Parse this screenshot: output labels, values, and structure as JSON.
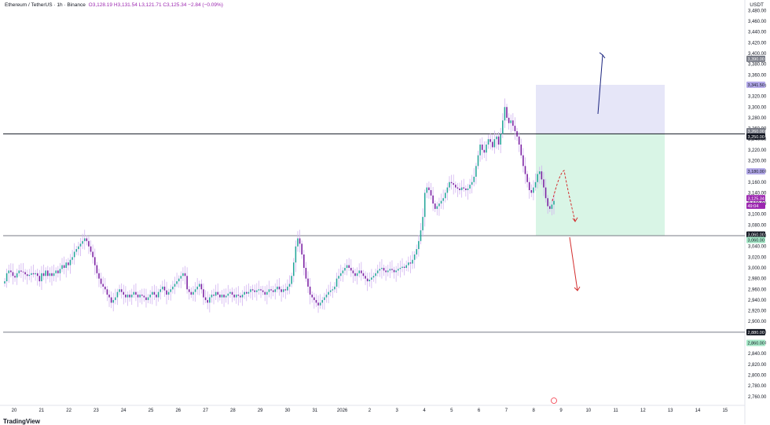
{
  "header": {
    "symbol": "Ethereum / TetherUS · 1h · Binance",
    "ohlc": "O3,128.19 H3,131.54 L3,121.71 C3,125.34 −2.84 (−0.09%)",
    "currency": "USDT"
  },
  "footer": {
    "logo_text": "TradingView"
  },
  "colors": {
    "up": "#26a69a",
    "down": "#7b1fa2",
    "wick": "#d1b3f0",
    "long_zone": "#d9f5e6",
    "short_zone": "#e6e6f8",
    "up_arrow": "#1a237e",
    "down_arrow": "#d32f2f",
    "hline": "#131722"
  },
  "chart_data": {
    "type": "candlestick",
    "ylim": [
      2745,
      3485
    ],
    "y_ticks": [
      2760,
      2780,
      2800,
      2820,
      2840,
      2860,
      2880,
      2900,
      2920,
      2940,
      2960,
      2980,
      3000,
      3020,
      3040,
      3060,
      3080,
      3100,
      3120,
      3140,
      3160,
      3180,
      3200,
      3220,
      3240,
      3260,
      3280,
      3300,
      3320,
      3340,
      3360,
      3380,
      3400,
      3420,
      3440,
      3460,
      3480
    ],
    "y_tick_labels": [
      "2,760.00",
      "2,780.00",
      "2,800.00",
      "2,820.00",
      "2,840.00",
      "2,860.00",
      "2,880.00",
      "2,900.00",
      "2,920.00",
      "2,940.00",
      "2,960.00",
      "2,980.00",
      "3,000.00",
      "3,020.00",
      "3,040.00",
      "3,060.00",
      "3,080.00",
      "3,100.00",
      "3,120.00",
      "3,140.00",
      "3,160.00",
      "3,180.00",
      "3,200.00",
      "3,220.00",
      "3,240.00",
      "3,260.00",
      "3,280.00",
      "3,300.00",
      "3,320.00",
      "3,340.00",
      "3,360.00",
      "3,380.00",
      "3,400.00",
      "3,420.00",
      "3,440.00",
      "3,460.00",
      "3,480.00"
    ],
    "x_labels": [
      "20",
      "21",
      "22",
      "23",
      "24",
      "25",
      "26",
      "27",
      "28",
      "29",
      "30",
      "31",
      "2026",
      "2",
      "3",
      "4",
      "5",
      "6",
      "7",
      "8",
      "9",
      "10",
      "11",
      "12",
      "13",
      "14",
      "15"
    ],
    "x_label_index": [
      0,
      1,
      2,
      3,
      4,
      5,
      6,
      7,
      8,
      9,
      10,
      11,
      12,
      13,
      14,
      15,
      16,
      17,
      18,
      19,
      20,
      21,
      22,
      23,
      24,
      25,
      26
    ],
    "closes": [
      2975,
      2990,
      2995,
      2992,
      2985,
      2982,
      2990,
      2995,
      2993,
      2992,
      2988,
      2985,
      2987,
      2990,
      2988,
      2990,
      2985,
      2975,
      2990,
      2985,
      2995,
      2985,
      2990,
      2985,
      2990,
      2995,
      2990,
      2998,
      3005,
      3000,
      3010,
      3005,
      3015,
      3020,
      3030,
      3035,
      3040,
      3045,
      3050,
      3055,
      3050,
      3040,
      3030,
      3020,
      3005,
      2990,
      2980,
      2970,
      2965,
      2960,
      2950,
      2945,
      2935,
      2940,
      2945,
      2955,
      2960,
      2955,
      2950,
      2945,
      2950,
      2945,
      2950,
      2955,
      2950,
      2945,
      2950,
      2948,
      2945,
      2940,
      2945,
      2950,
      2955,
      2950,
      2945,
      2955,
      2960,
      2965,
      2958,
      2950,
      2955,
      2960,
      2965,
      2970,
      2975,
      2980,
      2985,
      2990,
      2985,
      2960,
      2955,
      2950,
      2955,
      2960,
      2965,
      2970,
      2960,
      2945,
      2940,
      2935,
      2945,
      2950,
      2948,
      2955,
      2950,
      2945,
      2950,
      2945,
      2948,
      2952,
      2955,
      2950,
      2945,
      2950,
      2948,
      2945,
      2950,
      2955,
      2952,
      2955,
      2960,
      2958,
      2955,
      2958,
      2960,
      2958,
      2955,
      2950,
      2955,
      2960,
      2958,
      2955,
      2960,
      2965,
      2960,
      2955,
      2960,
      2958,
      2965,
      2970,
      2985,
      3010,
      3040,
      3055,
      3045,
      3025,
      3000,
      2980,
      2965,
      2950,
      2945,
      2940,
      2935,
      2930,
      2935,
      2940,
      2945,
      2950,
      2955,
      2958,
      2960,
      2965,
      2980,
      2985,
      2990,
      2995,
      3000,
      3005,
      3000,
      2995,
      2990,
      2985,
      2990,
      2995,
      2990,
      2985,
      2980,
      2975,
      2978,
      2982,
      2985,
      2990,
      2995,
      2998,
      3000,
      2995,
      2992,
      2995,
      2998,
      2996,
      2992,
      2995,
      2998,
      3000,
      3002,
      3000,
      3005,
      3010,
      3008,
      3015,
      3025,
      3035,
      3050,
      3070,
      3095,
      3140,
      3150,
      3145,
      3135,
      3120,
      3110,
      3115,
      3120,
      3125,
      3130,
      3140,
      3150,
      3160,
      3158,
      3155,
      3150,
      3148,
      3145,
      3150,
      3148,
      3145,
      3148,
      3155,
      3160,
      3170,
      3190,
      3210,
      3230,
      3220,
      3215,
      3230,
      3240,
      3235,
      3225,
      3240,
      3245,
      3230,
      3250,
      3275,
      3300,
      3280,
      3270,
      3275,
      3265,
      3255,
      3245,
      3230,
      3210,
      3190,
      3175,
      3160,
      3145,
      3140,
      3150,
      3160,
      3175,
      3180,
      3165,
      3150,
      3130,
      3115,
      3110,
      3118,
      3125
    ]
  },
  "levels": {
    "resistance": {
      "value": 3250,
      "label": "3,250.00"
    },
    "support": {
      "value": 3060,
      "label": "3,060.00"
    },
    "low": {
      "value": 2880,
      "label": "2,880.00"
    }
  },
  "axis_tags": [
    {
      "value": 3390,
      "label": "3,390.00",
      "bg": "#787b86",
      "fg": "#ffffff"
    },
    {
      "value": 3341.5,
      "label": "3,341.50",
      "bg": "#b2a8e8",
      "fg": "#131722"
    },
    {
      "value": 3255,
      "label": "3,260.00",
      "bg": "#787b86",
      "fg": "#ffffff"
    },
    {
      "value": 3245,
      "label": "3,250.00",
      "bg": "#131722",
      "fg": "#ffffff"
    },
    {
      "value": 3180,
      "label": "3,180.00",
      "bg": "#b2a8e8",
      "fg": "#131722"
    },
    {
      "value": 3130,
      "label": "3,125.34",
      "bg": "#9c27b0",
      "fg": "#ffffff"
    },
    {
      "value": 3116,
      "label": "49:04",
      "bg": "#9c27b0",
      "fg": "#ffffff"
    },
    {
      "value": 3062,
      "label": "3,060.00",
      "bg": "#131722",
      "fg": "#ffffff"
    },
    {
      "value": 3052,
      "label": "3,060.00",
      "bg": "#a5e8c7",
      "fg": "#131722"
    },
    {
      "value": 2880,
      "label": "2,880.00",
      "bg": "#131722",
      "fg": "#ffffff"
    },
    {
      "value": 2860,
      "label": "2,860.00",
      "bg": "#a5e8c7",
      "fg": "#131722"
    }
  ],
  "position": {
    "entry": 3250,
    "target": 3341.5,
    "stop": 3060
  }
}
